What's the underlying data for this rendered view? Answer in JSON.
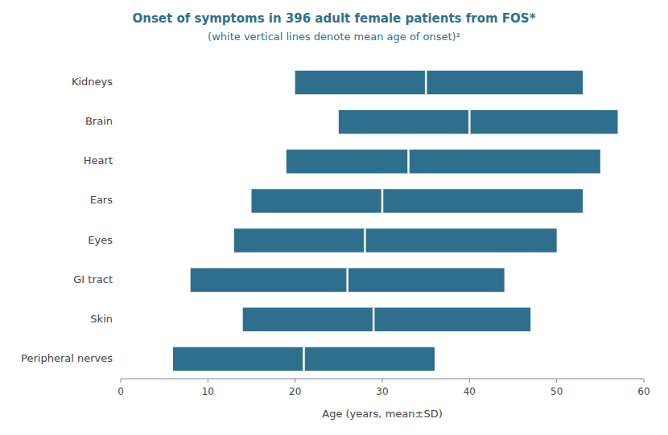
{
  "chart_data": {
    "type": "bar",
    "orientation": "horizontal",
    "title": "Onset of symptoms in 396 adult female patients from FOS*",
    "subtitle": "(white vertical lines denote mean age of onset)²",
    "xlabel": "Age (years, mean±SD)",
    "categories": [
      "Kidneys",
      "Brain",
      "Heart",
      "Ears",
      "Eyes",
      "GI tract",
      "Skin",
      "Peripheral nerves"
    ],
    "low": [
      20,
      25,
      19,
      15,
      13,
      8,
      14,
      6
    ],
    "values": [
      35,
      40,
      33,
      30,
      28,
      26,
      29,
      21
    ],
    "high": [
      53,
      57,
      55,
      53,
      50,
      44,
      47,
      36
    ],
    "color": "#2e6f8e",
    "xlim": [
      0,
      60
    ],
    "xticks": [
      0,
      10,
      20,
      30,
      40,
      50,
      60
    ],
    "grid": false
  }
}
